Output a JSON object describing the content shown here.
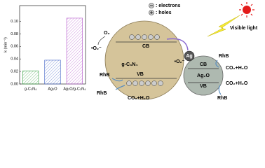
{
  "chart_data": {
    "type": "bar",
    "ylabel": "k (min⁻¹)",
    "categories": [
      "g-C₃N₄",
      "Ag₂O",
      "Ag₂O/g-C₃N₄"
    ],
    "values": [
      0.021,
      0.038,
      0.105
    ],
    "colors": [
      "#2e9e3a",
      "#3b5fc4",
      "#b04fc8"
    ],
    "ylim": [
      0,
      0.125
    ],
    "yticks": [
      {
        "value": 0,
        "label": "0.00"
      },
      {
        "value": 0.02,
        "label": "0.02"
      },
      {
        "value": 0.04,
        "label": "0.04"
      },
      {
        "value": 0.06,
        "label": "0.06"
      },
      {
        "value": 0.08,
        "label": "0.08"
      },
      {
        "value": 0.1,
        "label": "0.10"
      }
    ]
  },
  "diagram": {
    "legend": {
      "electrons": ": electrons",
      "holes": ": holes"
    },
    "light": "Visible light",
    "o2_top": "O₂",
    "superoxide_left": "•O₂⁻",
    "superoxide_ag": "•O₂⁻",
    "gcn": {
      "label": "g-C₃N₄",
      "cb": "CB",
      "vb": "VB"
    },
    "ag2o": {
      "label": "Ag₂O",
      "cb": "CB",
      "vb": "VB"
    },
    "ag": "Ag",
    "rhb": [
      "RhB",
      "RhB",
      "RhB",
      "RhB"
    ],
    "products": [
      "CO₂+H₂O",
      "CO₂+H₂O",
      "CO₂+H₂O"
    ]
  }
}
